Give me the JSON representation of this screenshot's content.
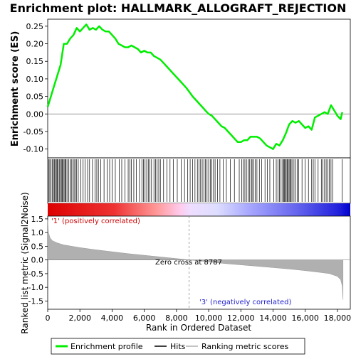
{
  "chart_data": {
    "type": "line",
    "title": "Enrichment plot: HALLMARK_ALLOGRAFT_REJECTION",
    "xlabel": "Rank in Ordered Dataset",
    "top_ylabel": "Enrichment score (ES)",
    "bottom_ylabel": "Ranked list metric (Signal2Noise)",
    "xlim": [
      0,
      18800
    ],
    "top_ylim": [
      -0.125,
      0.27
    ],
    "bottom_ylim": [
      -1.8,
      1.6
    ],
    "x_ticks": [
      0,
      2000,
      4000,
      6000,
      8000,
      10000,
      12000,
      14000,
      16000,
      18000
    ],
    "x_tick_labels": [
      "0",
      "2,000",
      "4,000",
      "6,000",
      "8,000",
      "10,000",
      "12,000",
      "14,000",
      "16,000",
      "18,000"
    ],
    "top_y_ticks": [
      0.25,
      0.2,
      0.15,
      0.1,
      0.05,
      0.0,
      -0.05,
      -0.1
    ],
    "top_y_tick_labels": [
      "0.25",
      "0.20",
      "0.15",
      "0.10",
      "0.05",
      "0.00",
      "-0.05",
      "-0.10"
    ],
    "bottom_y_ticks": [
      1.5,
      1.0,
      0.5,
      0.0,
      -0.5,
      -1.0,
      -1.5
    ],
    "bottom_y_tick_labels": [
      "1.5",
      "1.0",
      "0.5",
      "0.0",
      "-0.5",
      "-1.0",
      "-1.5"
    ],
    "enrichment_profile": {
      "x": [
        0,
        200,
        400,
        600,
        800,
        1000,
        1200,
        1400,
        1600,
        1800,
        2000,
        2200,
        2400,
        2600,
        2800,
        3000,
        3200,
        3400,
        3600,
        3800,
        4000,
        4200,
        4400,
        4600,
        4800,
        5000,
        5200,
        5400,
        5600,
        5800,
        6000,
        6200,
        6400,
        6600,
        6800,
        7000,
        7200,
        7400,
        7600,
        7800,
        8000,
        8200,
        8400,
        8600,
        8800,
        9000,
        9200,
        9400,
        9600,
        9800,
        10000,
        10200,
        10400,
        10600,
        10800,
        11000,
        11200,
        11400,
        11600,
        11800,
        12000,
        12200,
        12400,
        12600,
        12800,
        13000,
        13200,
        13400,
        13600,
        13800,
        14000,
        14200,
        14400,
        14600,
        14800,
        15000,
        15200,
        15400,
        15600,
        15800,
        16000,
        16200,
        16400,
        16600,
        16800,
        17000,
        17200,
        17400,
        17600,
        17800,
        18000,
        18200,
        18300
      ],
      "y": [
        0.02,
        0.05,
        0.08,
        0.11,
        0.14,
        0.2,
        0.2,
        0.215,
        0.225,
        0.245,
        0.235,
        0.245,
        0.255,
        0.24,
        0.245,
        0.24,
        0.25,
        0.24,
        0.235,
        0.235,
        0.225,
        0.215,
        0.2,
        0.195,
        0.19,
        0.19,
        0.195,
        0.19,
        0.185,
        0.175,
        0.18,
        0.175,
        0.175,
        0.165,
        0.16,
        0.155,
        0.145,
        0.135,
        0.125,
        0.115,
        0.105,
        0.095,
        0.085,
        0.075,
        0.063,
        0.05,
        0.04,
        0.03,
        0.02,
        0.01,
        0.0,
        -0.005,
        -0.015,
        -0.025,
        -0.035,
        -0.04,
        -0.05,
        -0.06,
        -0.07,
        -0.08,
        -0.08,
        -0.075,
        -0.075,
        -0.065,
        -0.065,
        -0.065,
        -0.07,
        -0.08,
        -0.09,
        -0.095,
        -0.1,
        -0.085,
        -0.09,
        -0.075,
        -0.055,
        -0.03,
        -0.02,
        -0.025,
        -0.02,
        -0.03,
        -0.04,
        -0.035,
        -0.045,
        -0.01,
        -0.005,
        0.0,
        0.005,
        0.0,
        0.025,
        0.01,
        -0.005,
        -0.015,
        0.005
      ]
    },
    "hits": [
      60,
      130,
      210,
      290,
      360,
      420,
      480,
      540,
      600,
      650,
      720,
      790,
      850,
      900,
      960,
      1020,
      1080,
      1130,
      1200,
      1300,
      1400,
      1470,
      1560,
      1640,
      1720,
      1800,
      1900,
      2050,
      2200,
      2320,
      2480,
      2600,
      2780,
      2950,
      3050,
      3150,
      3300,
      3500,
      3700,
      3850,
      4000,
      4200,
      4450,
      4600,
      4800,
      5000,
      5100,
      5200,
      5350,
      5500,
      5700,
      5850,
      5950,
      6050,
      6150,
      6250,
      6350,
      6450,
      6600,
      6700,
      6800,
      6900,
      7000,
      7200,
      7400,
      7600,
      7800,
      8050,
      8300,
      8500,
      8700,
      8850,
      9000,
      9150,
      9300,
      9400,
      9500,
      9600,
      9700,
      9800,
      9900,
      10000,
      10100,
      10200,
      10300,
      10400,
      10550,
      10700,
      10900,
      11100,
      11350,
      11600,
      11900,
      12050,
      12150,
      12250,
      12350,
      12450,
      12550,
      12650,
      12700,
      12800,
      12900,
      13000,
      13150,
      13300,
      13500,
      13650,
      13800,
      14050,
      14200,
      14300,
      14400,
      14500,
      14600,
      14650,
      14700,
      14760,
      14820,
      14880,
      14940,
      15000,
      15060,
      15120,
      15180,
      15300,
      15400,
      15500,
      15600,
      15800,
      16000,
      16200,
      16400,
      16500,
      16600,
      16800,
      17000,
      17100,
      17200,
      17300,
      17400,
      17500,
      17600,
      17700,
      18300
    ],
    "metric_curve": {
      "x": [
        0,
        50,
        150,
        300,
        600,
        1000,
        2000,
        3000,
        4000,
        5000,
        6000,
        7000,
        8000,
        8787,
        9500,
        10000,
        11000,
        12000,
        13000,
        14000,
        15000,
        16000,
        17000,
        17500,
        18000,
        18200,
        18300,
        18350
      ],
      "y": [
        1.45,
        1.0,
        0.8,
        0.7,
        0.62,
        0.55,
        0.45,
        0.37,
        0.3,
        0.23,
        0.17,
        0.11,
        0.05,
        0.0,
        -0.04,
        -0.07,
        -0.13,
        -0.18,
        -0.23,
        -0.28,
        -0.33,
        -0.39,
        -0.46,
        -0.5,
        -0.6,
        -0.72,
        -0.95,
        -1.45
      ]
    },
    "zero_cross_label": "Zero cross at 8787",
    "zero_cross_x": 8787,
    "positive_label": "'1' (positively correlated)",
    "negative_label": "'3' (negatively correlated)",
    "legend": [
      "Enrichment profile",
      "Hits",
      "Ranking metric scores"
    ],
    "colors": {
      "profile": "#00ee00",
      "hits": "#000000",
      "metric_fill": "#b0b0b0",
      "positive": "#dd0000",
      "negative": "#0000dd",
      "zero_line": "#888888"
    }
  }
}
